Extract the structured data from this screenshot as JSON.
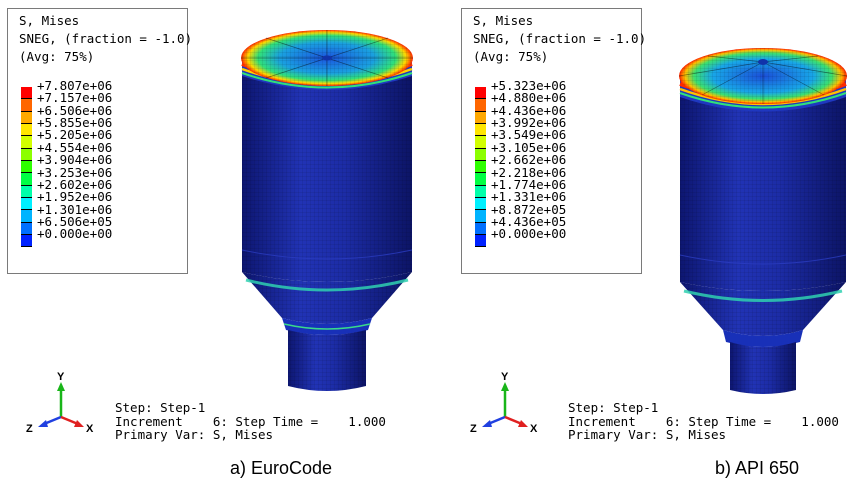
{
  "colors": {
    "tank_body": "#1a2aa0",
    "legend_bands": [
      "#ff0000",
      "#ff6600",
      "#ffa800",
      "#ffe600",
      "#d2ff00",
      "#8cff00",
      "#2eff00",
      "#00ff44",
      "#00ffaa",
      "#00f0ff",
      "#00b4ff",
      "#0070ff",
      "#0022ff"
    ]
  },
  "panels": [
    {
      "legend": {
        "title1": "S, Mises",
        "title2": "SNEG, (fraction = -1.0)",
        "title3": "(Avg: 75%)",
        "values": [
          "+7.807e+06",
          "+7.157e+06",
          "+6.506e+06",
          "+5.855e+06",
          "+5.205e+06",
          "+4.554e+06",
          "+3.904e+06",
          "+3.253e+06",
          "+2.602e+06",
          "+1.952e+06",
          "+1.301e+06",
          "+6.506e+05",
          "+0.000e+00"
        ]
      },
      "triad": {
        "y": "Y",
        "z": "Z",
        "x": "X"
      },
      "step_info": {
        "line1": "Step: Step-1",
        "line2": "Increment    6: Step Time =    1.000",
        "line3": "Primary Var: S, Mises"
      },
      "caption": "a) EuroCode"
    },
    {
      "legend": {
        "title1": "S, Mises",
        "title2": "SNEG, (fraction = -1.0)",
        "title3": "(Avg: 75%)",
        "values": [
          "+5.323e+06",
          "+4.880e+06",
          "+4.436e+06",
          "+3.992e+06",
          "+3.549e+06",
          "+3.105e+06",
          "+2.662e+06",
          "+2.218e+06",
          "+1.774e+06",
          "+1.331e+06",
          "+8.872e+05",
          "+4.436e+05",
          "+0.000e+00"
        ]
      },
      "triad": {
        "y": "Y",
        "z": "Z",
        "x": "X"
      },
      "step_info": {
        "line1": "Step: Step-1",
        "line2": "Increment    6: Step Time =    1.000",
        "line3": "Primary Var: S, Mises"
      },
      "caption": "b) API 650"
    }
  ]
}
